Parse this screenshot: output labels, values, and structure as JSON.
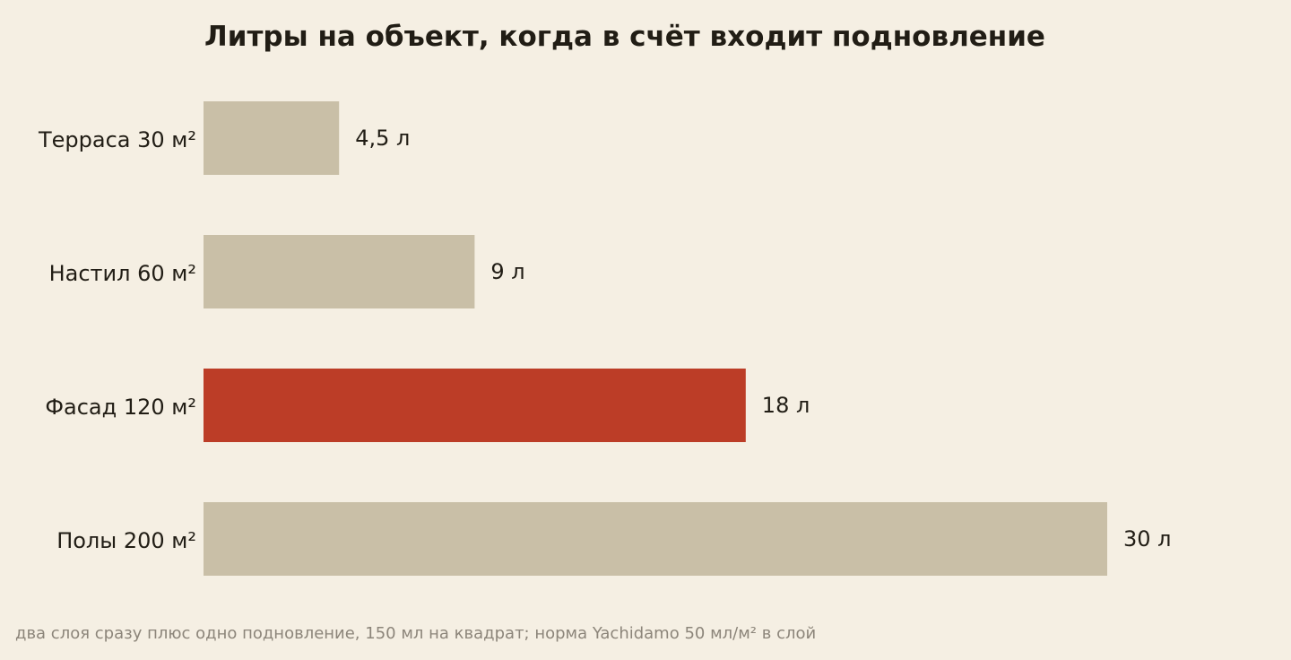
{
  "colors": {
    "background": "#f5efe3",
    "bar_default": "#c9bfa7",
    "bar_highlight": "#bc3d27",
    "text": "#211d15",
    "footnote": "#8c857a"
  },
  "chart_data": {
    "type": "bar",
    "orientation": "horizontal",
    "title": "Литры на объект, когда в счёт входит подновление",
    "categories": [
      "Терраса 30 м²",
      "Настил 60 м²",
      "Фасад 120 м²",
      "Полы 200 м²"
    ],
    "values": [
      4.5,
      9,
      18,
      30
    ],
    "value_labels": [
      "4,5 л",
      "9 л",
      "18 л",
      "30 л"
    ],
    "highlight_index": 2,
    "xlim": [
      0,
      30
    ],
    "grid": false,
    "legend": "none",
    "xlabel": "",
    "ylabel": ""
  },
  "footnote": "два слоя сразу плюс одно подновление, 150 мл на квадрат; норма Yachidamo 50 мл/м² в слой"
}
